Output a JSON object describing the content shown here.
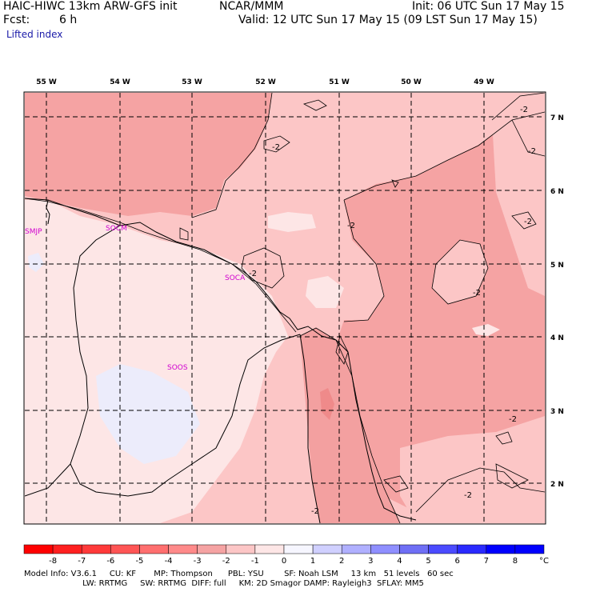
{
  "header": {
    "model_title": "HAIC-HIWC 13km ARW-GFS init",
    "org": "NCAR/MMM",
    "init": "Init: 06 UTC Sun 17 May 15",
    "fcst_label": "Fcst:",
    "fcst_value": "6 h",
    "valid": "Valid: 12 UTC Sun 17 May 15 (09 LST Sun 17 May 15)",
    "field": "Lifted index"
  },
  "map": {
    "lon_labels": [
      "55 W",
      "54 W",
      "53 W",
      "52 W",
      "51 W",
      "50 W",
      "49 W"
    ],
    "lat_labels": [
      "7 N",
      "6 N",
      "5 N",
      "4 N",
      "3 N",
      "2 N"
    ],
    "stations": [
      "SMJP",
      "SOCM",
      "SOCA",
      "SOOS"
    ],
    "contour_label": "-2"
  },
  "colorbar": {
    "ticks": [
      "-8",
      "-7",
      "-6",
      "-5",
      "-4",
      "-3",
      "-2",
      "-1",
      "0",
      "1",
      "2",
      "3",
      "4",
      "5",
      "6",
      "7",
      "8"
    ],
    "unit": "°C",
    "colors": [
      "#ff0000",
      "#ff2020",
      "#ff3a3a",
      "#ff5555",
      "#ff6f6f",
      "#ff8a8a",
      "#f5a3a3",
      "#fcc6c6",
      "#fde6e6",
      "#f6f6ff",
      "#d0d0ff",
      "#b0b0ff",
      "#8f8fff",
      "#6f6ff5",
      "#4b4bff",
      "#2a2aff",
      "#0000ff"
    ]
  },
  "footer": {
    "line1": "Model Info: V3.6.1     CU: KF       MP: Thompson      PBL: YSU        SF: Noah LSM     13 km   51 levels   60 sec",
    "line2": "                       LW: RRTMG     SW: RRTMG  DIFF: full     KM: 2D Smagor DAMP: Rayleigh3  SFLAY: MM5"
  }
}
